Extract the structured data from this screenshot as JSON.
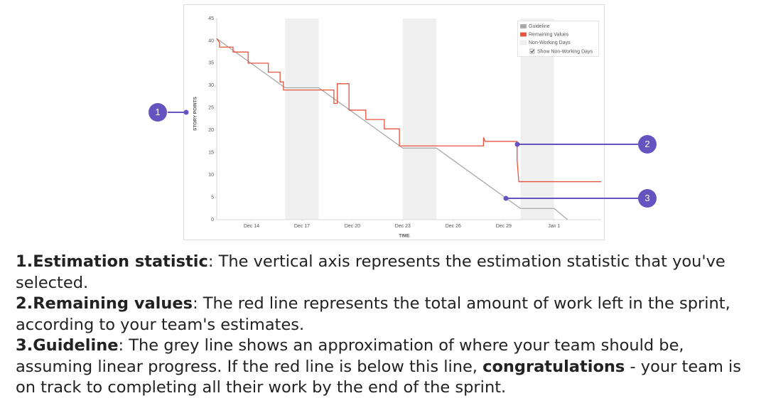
{
  "chart_data": {
    "type": "line",
    "y_label": "STORY POINTS",
    "x_label": "TIME",
    "xlim": [
      11.93,
      34.8
    ],
    "xticks": [
      {
        "value": 14,
        "label": "Dec 14"
      },
      {
        "value": 17,
        "label": "Dec 17"
      },
      {
        "value": 20,
        "label": "Dec 20"
      },
      {
        "value": 23,
        "label": "Dec 23"
      },
      {
        "value": 26,
        "label": "Dec 26"
      },
      {
        "value": 29,
        "label": "Dec 29"
      },
      {
        "value": 32,
        "label": "Jan 1"
      }
    ],
    "ylim": [
      0,
      45
    ],
    "yticks": [
      0,
      5,
      10,
      15,
      20,
      25,
      30,
      35,
      40,
      45
    ],
    "grid": false,
    "legend_position": "upper right",
    "non_working_days": {
      "name": "Non-Working Days",
      "color": "#f0f0f0",
      "ranges": [
        [
          16,
          18
        ],
        [
          23,
          25
        ],
        [
          30,
          32
        ]
      ]
    },
    "show_non_working_days": {
      "label": "Show Non-Working Days",
      "checked": true
    },
    "series": [
      {
        "name": "Guideline",
        "color": "#a8a8a8",
        "x": [
          11.93,
          16,
          18,
          23,
          25,
          30,
          32,
          32.8
        ],
        "values": [
          40.5,
          29.5,
          29.5,
          16,
          16,
          2.5,
          2.5,
          0
        ]
      },
      {
        "name": "Remaining Values",
        "color": "#e5533f",
        "x": [
          11.93,
          12.1,
          12.1,
          12.9,
          12.9,
          13.8,
          13.8,
          15,
          15,
          15.7,
          15.7,
          15.9,
          15.9,
          18.9,
          18.9,
          19.1,
          19.1,
          19.8,
          19.8,
          20.8,
          20.8,
          21.9,
          21.9,
          22.8,
          22.8,
          27.8,
          27.8,
          27.9,
          29.8,
          29.8,
          29.9,
          34.8
        ],
        "values": [
          40.5,
          39.6,
          38.6,
          38.6,
          37.5,
          37.5,
          35,
          35,
          33,
          33,
          30.8,
          30.8,
          29,
          29,
          26,
          26,
          30.4,
          30.4,
          24.5,
          24.5,
          22.4,
          22.4,
          20.3,
          20.3,
          16.5,
          16.5,
          18.4,
          17.5,
          17.5,
          13.4,
          8.5,
          8.5
        ]
      }
    ]
  },
  "callouts": [
    "1",
    "2",
    "3"
  ],
  "descriptions": [
    {
      "number": "1.",
      "term": "Estimation statistic",
      "text": ": The vertical axis represents the estimation statistic that you've selected."
    },
    {
      "number": "2.",
      "term": "Remaining values",
      "text": ": The red line represents the total amount of work left in the sprint, according to your team's estimates."
    },
    {
      "number": "3.",
      "term": "Guideline",
      "text": ": The grey line shows an approximation of where your team should be, assuming linear progress. If the red line is below this line, ",
      "emphasis": "congratulations",
      "text_after": " - your team is on track to completing all their work by the end of the sprint."
    }
  ]
}
